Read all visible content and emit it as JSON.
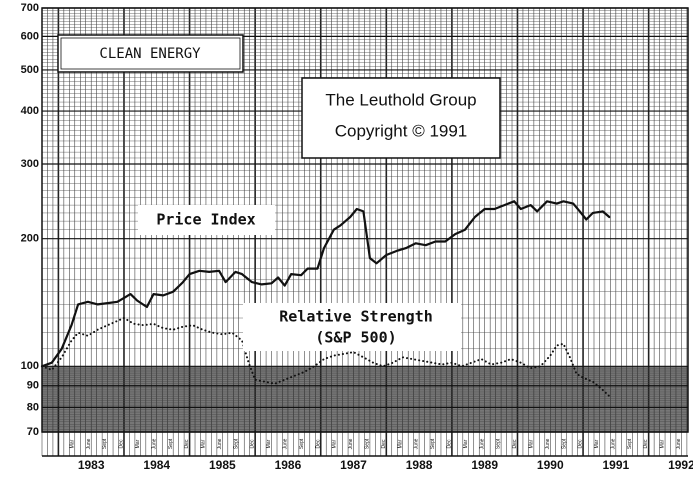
{
  "chart_data": {
    "type": "line",
    "title": "CLEAN ENERGY",
    "annotations": [
      "The Leuthold Group",
      "Copyright © 1991"
    ],
    "log_scale": true,
    "grid": true,
    "shade_below": 100,
    "ylim": [
      70,
      700
    ],
    "yticks": [
      70,
      80,
      90,
      100,
      200,
      300,
      400,
      500,
      600,
      700
    ],
    "xlim": [
      1982.75,
      1992.6
    ],
    "xticks": [
      {
        "value": 1983.5,
        "label": "1983"
      },
      {
        "value": 1984.5,
        "label": "1984"
      },
      {
        "value": 1985.5,
        "label": "1985"
      },
      {
        "value": 1986.5,
        "label": "1986"
      },
      {
        "value": 1987.5,
        "label": "1987"
      },
      {
        "value": 1988.5,
        "label": "1988"
      },
      {
        "value": 1989.5,
        "label": "1989"
      },
      {
        "value": 1990.5,
        "label": "1990"
      },
      {
        "value": 1991.5,
        "label": "1991"
      },
      {
        "value": 1992.5,
        "label": "1992"
      }
    ],
    "month_labels": [
      "Mar",
      "June",
      "Sept",
      "Dec"
    ],
    "series": [
      {
        "name": "Price Index",
        "color": "#111111",
        "style": "solid",
        "x": [
          1982.75,
          1982.9,
          1983.05,
          1983.2,
          1983.3,
          1983.45,
          1983.6,
          1983.75,
          1983.9,
          1984.0,
          1984.1,
          1984.2,
          1984.35,
          1984.45,
          1984.6,
          1984.75,
          1984.9,
          1985.0,
          1985.15,
          1985.3,
          1985.45,
          1985.55,
          1985.7,
          1985.8,
          1985.95,
          1986.1,
          1986.25,
          1986.35,
          1986.45,
          1986.55,
          1986.7,
          1986.8,
          1986.95,
          1987.05,
          1987.2,
          1987.3,
          1987.45,
          1987.55,
          1987.65,
          1987.75,
          1987.85,
          1988.0,
          1988.15,
          1988.3,
          1988.45,
          1988.6,
          1988.75,
          1988.9,
          1989.05,
          1989.2,
          1989.35,
          1989.5,
          1989.65,
          1989.8,
          1989.95,
          1990.05,
          1990.2,
          1990.3,
          1990.45,
          1990.6,
          1990.7,
          1990.85,
          1990.95,
          1991.05,
          1991.15,
          1991.3,
          1991.4
        ],
        "values": [
          100,
          102,
          110,
          125,
          140,
          142,
          140,
          141,
          142,
          145,
          148,
          143,
          138,
          148,
          147,
          150,
          158,
          165,
          168,
          167,
          168,
          158,
          167,
          165,
          158,
          156,
          157,
          162,
          155,
          165,
          164,
          170,
          170,
          190,
          210,
          215,
          225,
          235,
          232,
          180,
          175,
          183,
          187,
          190,
          195,
          193,
          197,
          197,
          205,
          210,
          225,
          235,
          235,
          240,
          245,
          235,
          240,
          232,
          245,
          242,
          245,
          242,
          232,
          222,
          230,
          232,
          225
        ]
      },
      {
        "name": "Relative Strength",
        "note": "(S&P 500)",
        "color": "#111111",
        "style": "dotted",
        "x": [
          1982.75,
          1982.9,
          1983.05,
          1983.2,
          1983.3,
          1983.45,
          1983.6,
          1983.75,
          1983.9,
          1984.0,
          1984.15,
          1984.3,
          1984.45,
          1984.6,
          1984.75,
          1984.9,
          1985.05,
          1985.2,
          1985.35,
          1985.5,
          1985.65,
          1985.8,
          1985.9,
          1986.0,
          1986.15,
          1986.3,
          1986.45,
          1986.6,
          1986.75,
          1986.9,
          1987.05,
          1987.2,
          1987.35,
          1987.5,
          1987.65,
          1987.8,
          1987.95,
          1988.1,
          1988.25,
          1988.4,
          1988.55,
          1988.7,
          1988.85,
          1989.0,
          1989.15,
          1989.3,
          1989.45,
          1989.6,
          1989.75,
          1989.9,
          1990.05,
          1990.2,
          1990.35,
          1990.5,
          1990.6,
          1990.7,
          1990.8,
          1990.9,
          1991.0,
          1991.15,
          1991.3,
          1991.4
        ],
        "values": [
          100,
          98,
          105,
          115,
          120,
          118,
          122,
          125,
          128,
          130,
          126,
          125,
          126,
          123,
          122,
          124,
          125,
          122,
          120,
          119,
          120,
          115,
          102,
          93,
          92,
          91,
          93,
          95,
          97,
          100,
          104,
          106,
          107,
          108,
          105,
          102,
          100,
          102,
          105,
          104,
          103,
          102,
          101,
          102,
          100,
          102,
          104,
          101,
          102,
          104,
          102,
          99,
          100,
          106,
          112,
          113,
          105,
          96,
          94,
          92,
          88,
          85
        ]
      }
    ]
  }
}
